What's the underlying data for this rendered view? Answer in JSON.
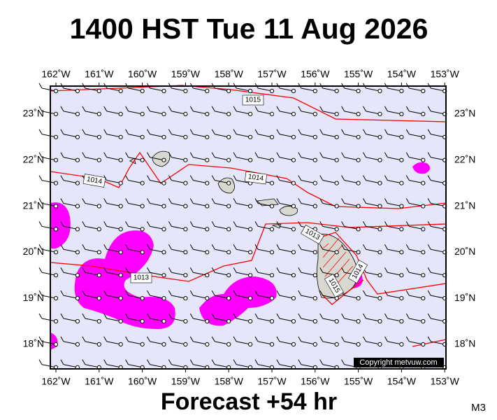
{
  "title": "1400 HST Tue 11 Aug 2026",
  "subtitle": "Forecast +54 hr",
  "corner_label": "M3",
  "copyright": "Copyright metvuw.com",
  "lon_labels": [
    "162˚W",
    "161˚W",
    "160˚W",
    "159˚W",
    "158˚W",
    "157˚W",
    "156˚W",
    "155˚W",
    "154˚W",
    "153˚W"
  ],
  "lat_labels": [
    "23˚N",
    "22˚N",
    "21˚N",
    "20˚N",
    "19˚N",
    "18˚N"
  ],
  "isobar_labels": [
    "1015",
    "1014",
    "1014",
    "1013",
    "1013",
    "1015",
    "1014"
  ]
}
